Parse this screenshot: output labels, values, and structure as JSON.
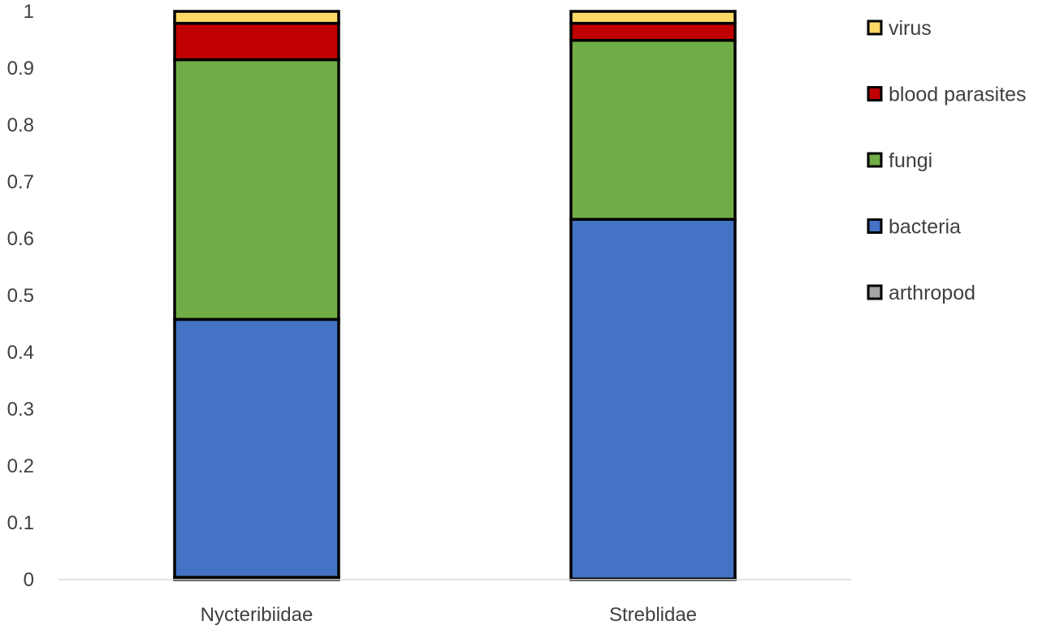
{
  "chart_data": {
    "type": "bar",
    "stacked": true,
    "categories": [
      "Nycteribiidae",
      "Streblidae"
    ],
    "series": [
      {
        "name": "arthropod",
        "color": "#A5A5A5",
        "values": [
          0.004,
          0.001
        ]
      },
      {
        "name": "bacteria",
        "color": "#4472C4",
        "values": [
          0.454,
          0.633
        ]
      },
      {
        "name": "fungi",
        "color": "#70AD47",
        "values": [
          0.457,
          0.315
        ]
      },
      {
        "name": "blood parasites",
        "color": "#C00000",
        "values": [
          0.064,
          0.03
        ]
      },
      {
        "name": "virus",
        "color": "#FFD966",
        "values": [
          0.021,
          0.021
        ]
      }
    ],
    "ylim": [
      0,
      1
    ],
    "yticks": [
      "0",
      "0.1",
      "0.2",
      "0.3",
      "0.4",
      "0.5",
      "0.6",
      "0.7",
      "0.8",
      "0.9",
      "1"
    ],
    "title": "",
    "xlabel": "",
    "ylabel": "",
    "grid": false,
    "legend_position": "right"
  }
}
